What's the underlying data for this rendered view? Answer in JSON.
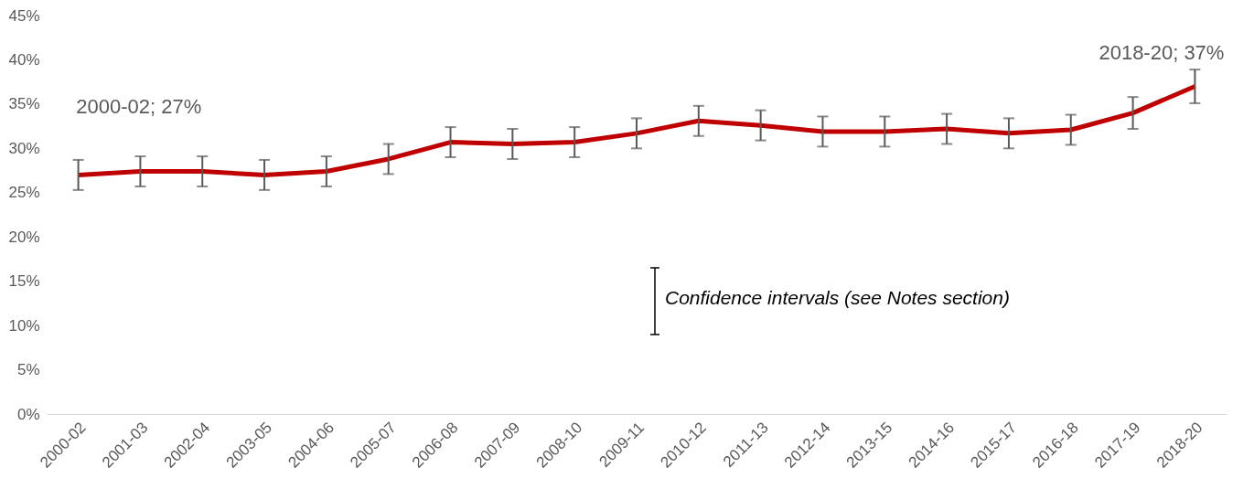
{
  "chart_data": {
    "type": "line",
    "categories": [
      "2000-02",
      "2001-03",
      "2002-04",
      "2003-05",
      "2004-06",
      "2005-07",
      "2006-08",
      "2007-09",
      "2008-10",
      "2009-11",
      "2010-12",
      "2011-13",
      "2012-14",
      "2013-15",
      "2014-16",
      "2015-17",
      "2016-18",
      "2017-19",
      "2018-20"
    ],
    "series": [
      {
        "color": "#c00000",
        "values": [
          27.0,
          27.4,
          27.4,
          27.0,
          27.4,
          28.8,
          30.7,
          30.5,
          30.7,
          31.7,
          33.1,
          32.6,
          31.9,
          31.9,
          32.2,
          31.7,
          32.1,
          34.0,
          37.0
        ],
        "errors": [
          1.7,
          1.7,
          1.7,
          1.7,
          1.7,
          1.7,
          1.7,
          1.7,
          1.7,
          1.7,
          1.7,
          1.7,
          1.7,
          1.7,
          1.7,
          1.7,
          1.7,
          1.8,
          1.9
        ]
      }
    ],
    "ylim": [
      0,
      45
    ],
    "yticks": [
      {
        "value": 0,
        "label": "0%"
      },
      {
        "value": 5,
        "label": "5%"
      },
      {
        "value": 10,
        "label": "10%"
      },
      {
        "value": 15,
        "label": "15%"
      },
      {
        "value": 20,
        "label": "20%"
      },
      {
        "value": 25,
        "label": "25%"
      },
      {
        "value": 30,
        "label": "30%"
      },
      {
        "value": 35,
        "label": "35%"
      },
      {
        "value": 40,
        "label": "40%"
      },
      {
        "value": 45,
        "label": "45%"
      }
    ],
    "annotations": [
      "2000-02; 27%",
      "2018-20; 37%",
      "Confidence intervals (see Notes section)"
    ],
    "grid": false,
    "marker": "none",
    "line_style": "solid"
  }
}
